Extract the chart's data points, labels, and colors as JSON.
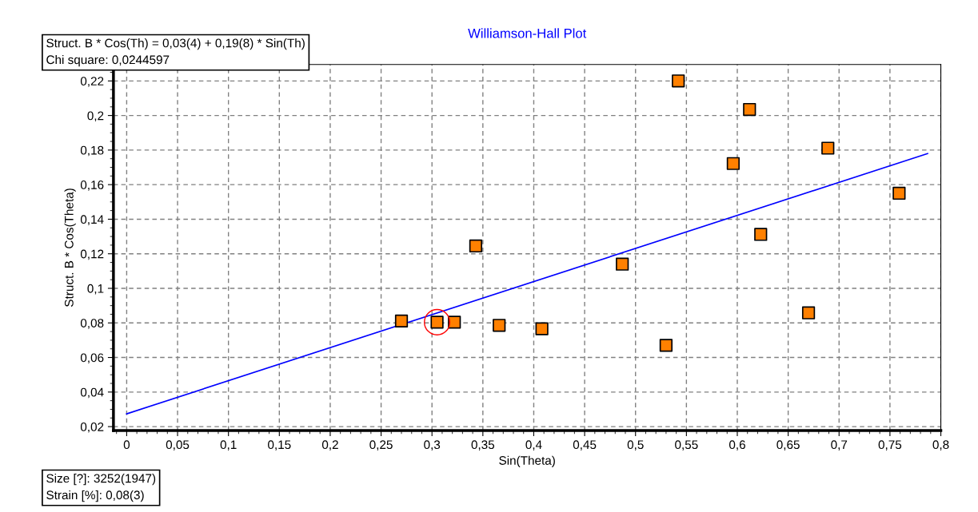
{
  "chart_data": {
    "type": "scatter",
    "title": "Williamson-Hall Plot",
    "xlabel": "Sin(Theta)",
    "ylabel": "Struct. B * Cos(Theta)",
    "annotations": [
      "Struct. B * Cos(Th) = 0,03(4) + 0,19(8) * Sin(Th)\nChi square: 0,0244597",
      "Size [?]: 3252(1947)\nStrain [%]: 0,08(3)"
    ],
    "series": [
      {
        "color": "#ff8000",
        "marker": "square",
        "x": [
          0.27,
          0.305,
          0.322,
          0.343,
          0.366,
          0.408,
          0.487,
          0.53,
          0.542,
          0.596,
          0.612,
          0.623,
          0.67,
          0.689,
          0.759
        ],
        "values": [
          0.0811,
          0.0804,
          0.0804,
          0.1245,
          0.0786,
          0.0766,
          0.114,
          0.067,
          0.22,
          0.1722,
          0.2035,
          0.1312,
          0.0858,
          0.1811,
          0.155
        ]
      },
      {
        "type": "line",
        "color": "#0000ff",
        "marker": "none",
        "line_style": "solid",
        "x": [
          0,
          0.787
        ],
        "values": [
          0.0274,
          0.178
        ]
      },
      {
        "color": "#ff0000",
        "marker": "circle",
        "x": [
          0.305
        ],
        "values": [
          0.0804
        ]
      }
    ],
    "xlim": [
      -0.013,
      0.8
    ],
    "ylim": [
      0.0177,
      0.2295
    ],
    "xticks": [
      0,
      {
        "value": 0.05,
        "label": "0,05"
      },
      {
        "value": 0.1,
        "label": "0,1"
      },
      {
        "value": 0.15,
        "label": "0,15"
      },
      {
        "value": 0.2,
        "label": "0,2"
      },
      {
        "value": 0.25,
        "label": "0,25"
      },
      {
        "value": 0.3,
        "label": "0,3"
      },
      {
        "value": 0.35,
        "label": "0,35"
      },
      {
        "value": 0.4,
        "label": "0,4"
      },
      {
        "value": 0.45,
        "label": "0,45"
      },
      {
        "value": 0.5,
        "label": "0,5"
      },
      {
        "value": 0.55,
        "label": "0,55"
      },
      {
        "value": 0.6,
        "label": "0,6"
      },
      {
        "value": 0.65,
        "label": "0,65"
      },
      {
        "value": 0.7,
        "label": "0,7"
      },
      {
        "value": 0.75,
        "label": "0,75"
      },
      {
        "value": 0.8,
        "label": "0,8"
      }
    ],
    "yticks": [
      {
        "value": 0.02,
        "label": "0,02"
      },
      {
        "value": 0.04,
        "label": "0,04"
      },
      {
        "value": 0.06,
        "label": "0,06"
      },
      {
        "value": 0.08,
        "label": "0,08"
      },
      {
        "value": 0.1,
        "label": "0,1"
      },
      {
        "value": 0.12,
        "label": "0,12"
      },
      {
        "value": 0.14,
        "label": "0,14"
      },
      {
        "value": 0.16,
        "label": "0,16"
      },
      {
        "value": 0.18,
        "label": "0,18"
      },
      {
        "value": 0.2,
        "label": "0,2"
      },
      {
        "value": 0.22,
        "label": "0,22"
      }
    ],
    "grid": true,
    "legend": false
  }
}
